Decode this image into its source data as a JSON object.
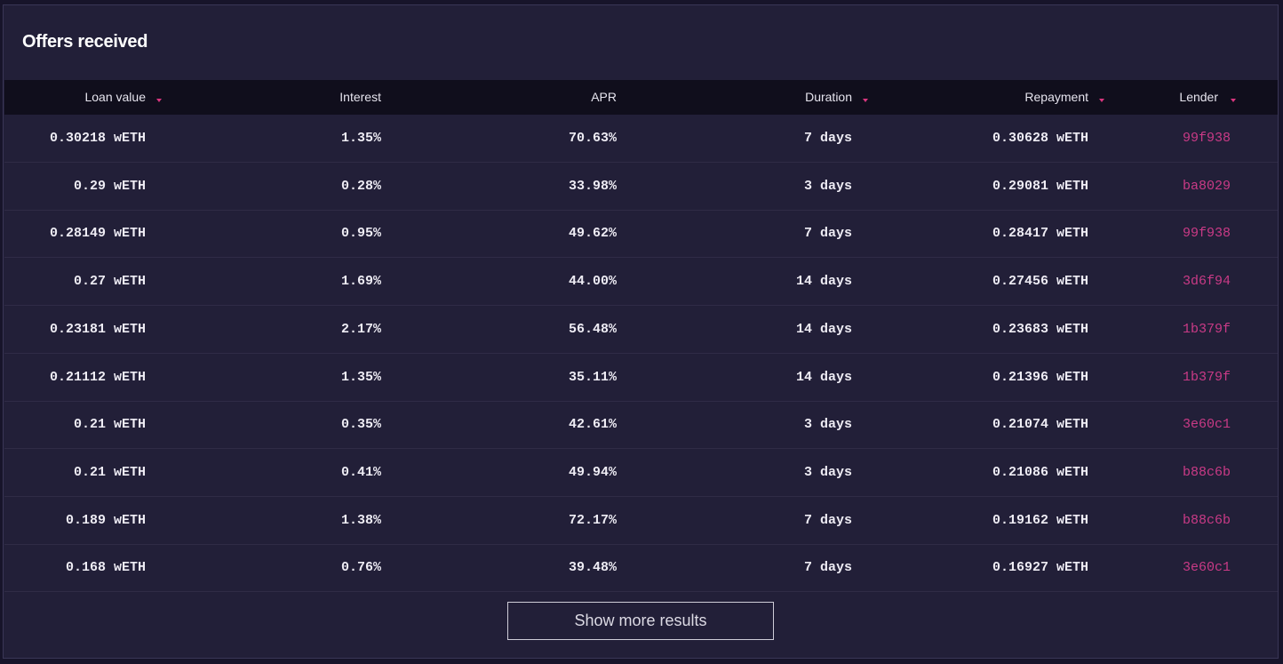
{
  "header": {
    "title": "Offers received"
  },
  "table": {
    "columns": [
      "Loan value",
      "Interest",
      "APR",
      "Duration",
      "Repayment",
      "Lender"
    ],
    "rows": [
      [
        "0.30218 wETH",
        "1.35%",
        "70.63%",
        "7 days",
        "0.30628 wETH",
        "99f938"
      ],
      [
        "0.29 wETH",
        "0.28%",
        "33.98%",
        "3 days",
        "0.29081 wETH",
        "ba8029"
      ],
      [
        "0.28149 wETH",
        "0.95%",
        "49.62%",
        "7 days",
        "0.28417 wETH",
        "99f938"
      ],
      [
        "0.27 wETH",
        "1.69%",
        "44.00%",
        "14 days",
        "0.27456 wETH",
        "3d6f94"
      ],
      [
        "0.23181 wETH",
        "2.17%",
        "56.48%",
        "14 days",
        "0.23683 wETH",
        "1b379f"
      ],
      [
        "0.21112 wETH",
        "1.35%",
        "35.11%",
        "14 days",
        "0.21396 wETH",
        "1b379f"
      ],
      [
        "0.21 wETH",
        "0.35%",
        "42.61%",
        "3 days",
        "0.21074 wETH",
        "3e60c1"
      ],
      [
        "0.21 wETH",
        "0.41%",
        "49.94%",
        "3 days",
        "0.21086 wETH",
        "b88c6b"
      ],
      [
        "0.189 wETH",
        "1.38%",
        "72.17%",
        "7 days",
        "0.19162 wETH",
        "b88c6b"
      ],
      [
        "0.168 wETH",
        "0.76%",
        "39.48%",
        "7 days",
        "0.16927 wETH",
        "3e60c1"
      ]
    ]
  },
  "button": {
    "label": "Show more results"
  }
}
